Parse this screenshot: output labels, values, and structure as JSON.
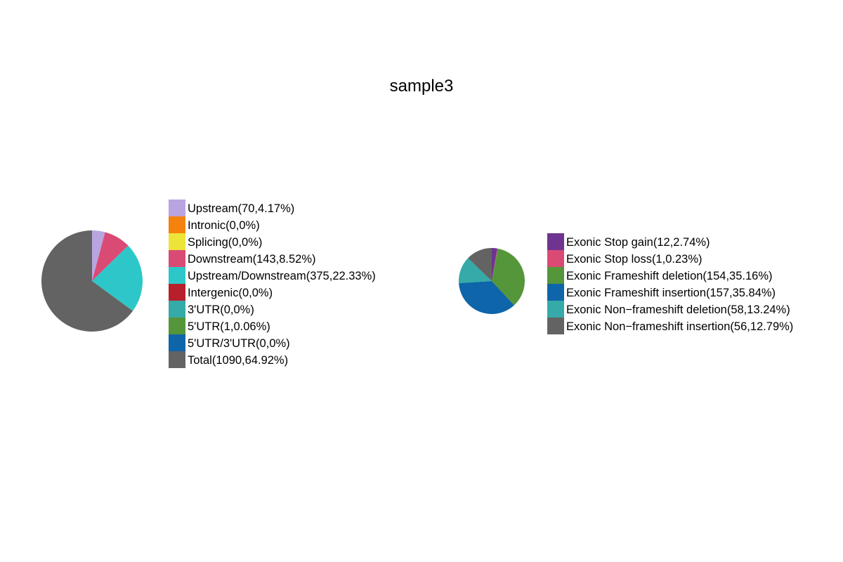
{
  "title": "sample3",
  "chart_data": [
    {
      "type": "pie",
      "legend_position": "right",
      "slices": [
        {
          "label": "Upstream(70,4.17%)",
          "value": 70,
          "color": "#b8a5e0"
        },
        {
          "label": "Intronic(0,0%)",
          "value": 0,
          "color": "#f5820c"
        },
        {
          "label": "Splicing(0,0%)",
          "value": 0,
          "color": "#ece438"
        },
        {
          "label": "Downstream(143,8.52%)",
          "value": 143,
          "color": "#d94b74"
        },
        {
          "label": "Upstream/Downstream(375,22.33%)",
          "value": 375,
          "color": "#2ec7c9"
        },
        {
          "label": "Intergenic(0,0%)",
          "value": 0,
          "color": "#b7202a"
        },
        {
          "label": "3'UTR(0,0%)",
          "value": 0,
          "color": "#35aaa8"
        },
        {
          "label": "5'UTR(1,0.06%)",
          "value": 1,
          "color": "#55963a"
        },
        {
          "label": "5'UTR/3'UTR(0,0%)",
          "value": 0,
          "color": "#0f65a9"
        },
        {
          "label": "Total(1090,64.92%)",
          "value": 1090,
          "color": "#636363"
        }
      ]
    },
    {
      "type": "pie",
      "legend_position": "right",
      "slices": [
        {
          "label": "Exonic Stop gain(12,2.74%)",
          "value": 12,
          "color": "#6e3490"
        },
        {
          "label": "Exonic Stop loss(1,0.23%)",
          "value": 1,
          "color": "#d94b74"
        },
        {
          "label": "Exonic Frameshift deletion(154,35.16%)",
          "value": 154,
          "color": "#55963a"
        },
        {
          "label": "Exonic Frameshift insertion(157,35.84%)",
          "value": 157,
          "color": "#0f65a9"
        },
        {
          "label": "Exonic Non−frameshift deletion(58,13.24%)",
          "value": 58,
          "color": "#35aaa8"
        },
        {
          "label": "Exonic Non−frameshift insertion(56,12.79%)",
          "value": 56,
          "color": "#636363"
        }
      ]
    }
  ]
}
